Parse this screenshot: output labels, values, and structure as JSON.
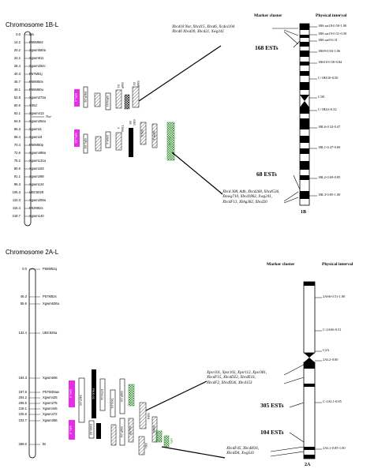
{
  "colors": {
    "qtl_magenta": "#e62ee6",
    "qtl_green": "#2e8b2e",
    "line": "#000000"
  },
  "panel_1b": {
    "title": "Chromosome 1B-L",
    "marker_cluster_header": "Marker cluster",
    "physical_interval_header": "Physical interval",
    "markers": [
      {
        "pos": "0.0",
        "name": "Wx"
      },
      {
        "pos": "14.2",
        "name": "P55M56z"
      },
      {
        "pos": "20.2",
        "name": "Xgwm560a"
      },
      {
        "pos": "22.2",
        "name": "Xgwm911"
      },
      {
        "pos": "26.4",
        "name": "Xgwm264c"
      },
      {
        "pos": "40.3",
        "name": "P57M51j"
      },
      {
        "pos": "45.7",
        "name": "P58M50x"
      },
      {
        "pos": "49.1",
        "name": "P55M60u"
      },
      {
        "pos": "52.8",
        "name": "Xgwm273a"
      },
      {
        "pos": "60.5",
        "name": "Ylr52"
      },
      {
        "pos": "62.1",
        "name": "Xgwm413"
      },
      {
        "pos": "64.5",
        "name": "Xgwm264a"
      },
      {
        "pos": "66.3",
        "name": "Xgwm11"
      },
      {
        "pos": "68.4",
        "name": "Xgwm18"
      },
      {
        "pos": "70.4",
        "name": "P56M50p"
      },
      {
        "pos": "72.6",
        "name": "Xgwm498a"
      },
      {
        "pos": "75.2",
        "name": "Xgwm131a"
      },
      {
        "pos": "80.5",
        "name": "Xgwm153"
      },
      {
        "pos": "91.1",
        "name": "Xgwm268"
      },
      {
        "pos": "96.3",
        "name": "Xgwm124"
      },
      {
        "pos": "105.3",
        "name": "UBC5028"
      },
      {
        "pos": "110.3",
        "name": "Xgwm259a"
      },
      {
        "pos": "115.4",
        "name": "P52M52x"
      },
      {
        "pos": "218.7",
        "name": "Xgwm140"
      }
    ],
    "nor_label": "Nor",
    "qtl_labels": [
      "SPL-1",
      "RKP-01",
      "SPM-01",
      "SNP-01",
      "SNP-02",
      "SPL-03",
      "SPL-04",
      "DSH-1",
      "TSW-1",
      "SSF-06",
      "SN-1",
      "GPP-1",
      "SL-09",
      "SKL",
      "SNRPS"
    ],
    "bins": [
      "1BS sat18-0.50-1.00",
      "1BS sat19-0.31-0.50",
      "1BS sat9-0.31",
      "1BS9-0.84-1.06",
      "1BS10-0.50-0.84",
      "C-1BS10-0.50",
      "C1B",
      "C-1BL6-0.32",
      "1BL6-0.32-0.47",
      "1BL1-0.47-0.69",
      "1BL2-0.69-0.85",
      "1BL3-0.85-1.00"
    ],
    "cluster_top": [
      "Xbcd10 Nor, Xbcd15, Xbcd6, Xcdo1104",
      "Xbcd6 Xbcd20, Xbcd21, Xwg241"
    ],
    "est_top": "168 ESTs",
    "est_mid": "68 ESTs",
    "cluster_bottom": [
      "Xbcd 308, Adh, Xbcd268, XbcdG36,",
      "Xmwg710, Xbcd1802, Xwg241,",
      "XbcdF13, Xbhg382, Xbcd20"
    ],
    "chrom_label": "1B"
  },
  "panel_2a": {
    "title": "Chromosome 2A-L",
    "marker_cluster_header": "Marker cluster",
    "physical_interval_header": "Physical interval",
    "markers": [
      {
        "pos": "0.0",
        "name": "P55M52q"
      },
      {
        "pos": "46.3",
        "name": "P57M52x"
      },
      {
        "pos": "55.6",
        "name": "Xgwm636a"
      },
      {
        "pos": "132.4",
        "name": "UBC925a"
      },
      {
        "pos": "184.3",
        "name": "Xgwm608"
      },
      {
        "pos": "197.6",
        "name": "P57M49aw"
      },
      {
        "pos": "204.2",
        "name": "Xgwm425"
      },
      {
        "pos": "206.5",
        "name": "Xgwm275"
      },
      {
        "pos": "218.1",
        "name": "Xgwm445"
      },
      {
        "pos": "225.6",
        "name": "Xgwm472"
      },
      {
        "pos": "233.7",
        "name": "Xgwm356"
      },
      {
        "pos": "289.0",
        "name": "Br"
      }
    ],
    "qtl_labels": [
      "SPL-2",
      "SPL-3",
      "RKS-01",
      "SKP-03",
      "DTH-01",
      "DSH-02",
      "TKS-01",
      "SNP-03",
      "SNP-04",
      "SSN",
      "SL-05",
      "SKL",
      "GWS",
      "SPL"
    ],
    "bins": [
      "2AS6-0.51-1.00",
      "C-2AS6-0.51",
      "C2A",
      "2AL2-0.00",
      "C-2AL1-0.85",
      "2AL1-0.85-1.00"
    ],
    "cluster_mid": [
      "Xpsr101, Xpsr102, Xpsr112, Xpsr381,",
      "XbcdF15, XbcdD22, XbcdE16,",
      "XbcdF2, XbcdD36, Xbcd153"
    ],
    "est_mid": "305 ESTs",
    "est_low": "104 ESTs",
    "cluster_bottom": [
      "XbcdF45, XbcdH16,",
      "XbcdD4, Xwg541"
    ],
    "chrom_label": "2A"
  }
}
